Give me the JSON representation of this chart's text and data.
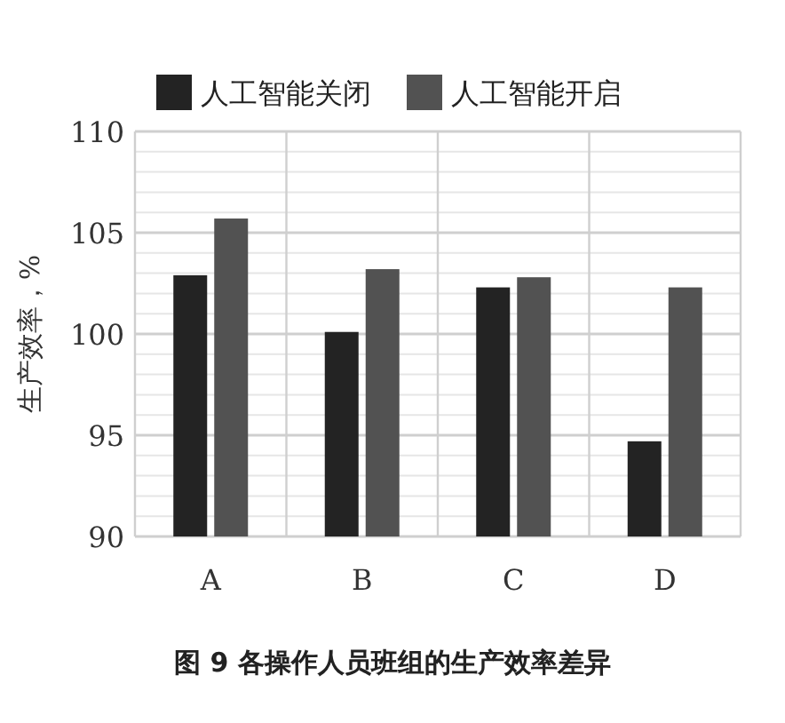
{
  "chart_data": {
    "type": "bar",
    "title": "图 9 各操作人员班组的生产效率差异",
    "ylabel": "生产效率，%",
    "categories": [
      "A",
      "B",
      "C",
      "D"
    ],
    "series": [
      {
        "name": "人工智能关闭",
        "color": "#232323",
        "values": [
          102.9,
          100.1,
          102.3,
          94.7
        ]
      },
      {
        "name": "人工智能开启",
        "color": "#525252",
        "values": [
          105.7,
          103.2,
          102.8,
          102.3
        ]
      }
    ],
    "ylim": [
      90,
      110
    ],
    "yticks": [
      90,
      {
        "value": 91,
        "label": null
      },
      {
        "value": 92,
        "label": null
      },
      {
        "value": 93,
        "label": null
      },
      {
        "value": 94,
        "label": null
      },
      95,
      {
        "value": 96,
        "label": null
      },
      {
        "value": 97,
        "label": null
      },
      {
        "value": 98,
        "label": null
      },
      {
        "value": 99,
        "label": null
      },
      100,
      {
        "value": 101,
        "label": null
      },
      {
        "value": 102,
        "label": null
      },
      {
        "value": 103,
        "label": null
      },
      {
        "value": 104,
        "label": null
      },
      105,
      {
        "value": 106,
        "label": null
      },
      {
        "value": 107,
        "label": null
      },
      {
        "value": 108,
        "label": null
      },
      {
        "value": 109,
        "label": null
      },
      110
    ],
    "grid": true,
    "legend": "top"
  }
}
